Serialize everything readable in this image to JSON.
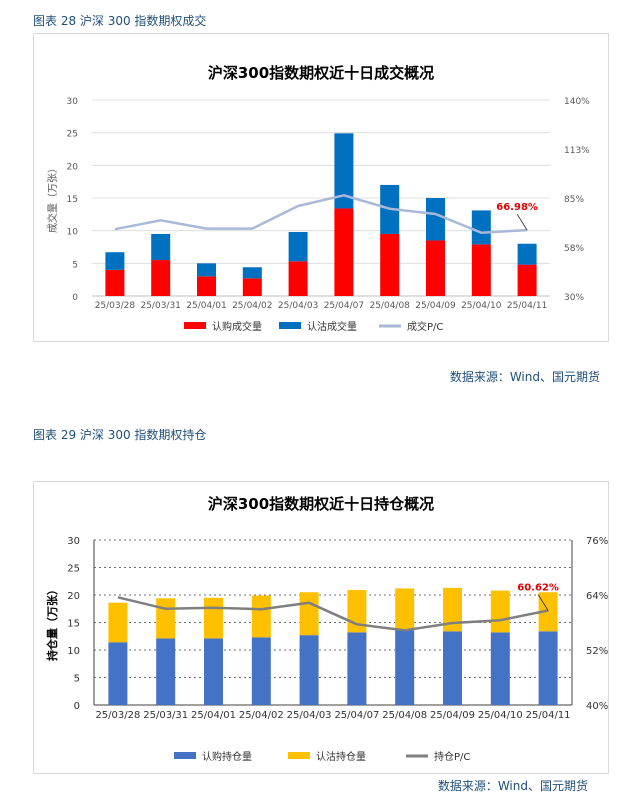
{
  "figure28": {
    "caption": "图表 28 沪深 300 指数期权成交",
    "source": "数据来源：Wind、国元期货"
  },
  "figure29": {
    "caption": "图表 29 沪深 300 指数期权持仓",
    "source": "数据来源：Wind、国元期货"
  },
  "chart_data": [
    {
      "type": "bar",
      "stacked": true,
      "title": "沪深300指数期权近十日成交概况",
      "ylabel": "成交量（万张）",
      "y2label": "",
      "categories": [
        "25/03/28",
        "25/03/31",
        "25/04/01",
        "25/04/02",
        "25/04/03",
        "25/04/07",
        "25/04/08",
        "25/04/09",
        "25/04/10",
        "25/04/11"
      ],
      "ylim": [
        0,
        30
      ],
      "yticks": [
        "0",
        "5",
        "10",
        "15",
        "20",
        "25",
        "30"
      ],
      "y2lim": [
        30,
        140
      ],
      "y2ticks": [
        "30%",
        "58%",
        "85%",
        "113%",
        "140%"
      ],
      "grid": true,
      "legend_position": "bottom",
      "series": [
        {
          "name": "认购成交量",
          "kind": "bar",
          "color": "#ff0000",
          "values": [
            4.0,
            5.5,
            3.0,
            2.7,
            5.3,
            13.4,
            9.5,
            8.5,
            7.9,
            4.8
          ]
        },
        {
          "name": "认沽成交量",
          "kind": "bar",
          "color": "#0070c0",
          "values": [
            2.7,
            4.0,
            2.0,
            1.7,
            4.5,
            11.5,
            7.5,
            6.5,
            5.2,
            3.2
          ]
        },
        {
          "name": "成交P/C",
          "kind": "line",
          "axis": "right",
          "color": "#a9b8d9",
          "values": [
            67.5,
            72.5,
            67.8,
            67.8,
            80.5,
            86.5,
            79.0,
            76.0,
            65.5,
            66.98
          ]
        }
      ],
      "annotation": {
        "text": "66.98%",
        "index": 9,
        "color": "#e00000"
      }
    },
    {
      "type": "bar",
      "stacked": true,
      "title": "沪深300指数期权近十日持仓概况",
      "ylabel": "持仓量（万张）",
      "y2label": "",
      "categories": [
        "25/03/28",
        "25/03/31",
        "25/04/01",
        "25/04/02",
        "25/04/03",
        "25/04/07",
        "25/04/08",
        "25/04/09",
        "25/04/10",
        "25/04/11"
      ],
      "ylim": [
        0,
        30
      ],
      "yticks": [
        "0",
        "5",
        "10",
        "15",
        "20",
        "25",
        "30"
      ],
      "y2lim": [
        40,
        76
      ],
      "y2ticks": [
        "40%",
        "52%",
        "64%",
        "76%"
      ],
      "grid": true,
      "legend_position": "bottom",
      "series": [
        {
          "name": "认购持仓量",
          "kind": "bar",
          "color": "#4472c4",
          "values": [
            11.4,
            12.1,
            12.1,
            12.3,
            12.7,
            13.2,
            13.6,
            13.4,
            13.2,
            13.4
          ]
        },
        {
          "name": "认沽持仓量",
          "kind": "bar",
          "color": "#ffc000",
          "values": [
            7.2,
            7.3,
            7.4,
            7.6,
            7.8,
            7.7,
            7.6,
            7.9,
            7.6,
            7.1
          ]
        },
        {
          "name": "持仓P/C",
          "kind": "line",
          "axis": "right",
          "color": "#7f7f7f",
          "values": [
            63.5,
            61.0,
            61.2,
            60.9,
            62.3,
            57.6,
            56.3,
            57.9,
            58.5,
            60.62
          ]
        }
      ],
      "annotation": {
        "text": "60.62%",
        "index": 9,
        "color": "#e00000"
      }
    }
  ]
}
